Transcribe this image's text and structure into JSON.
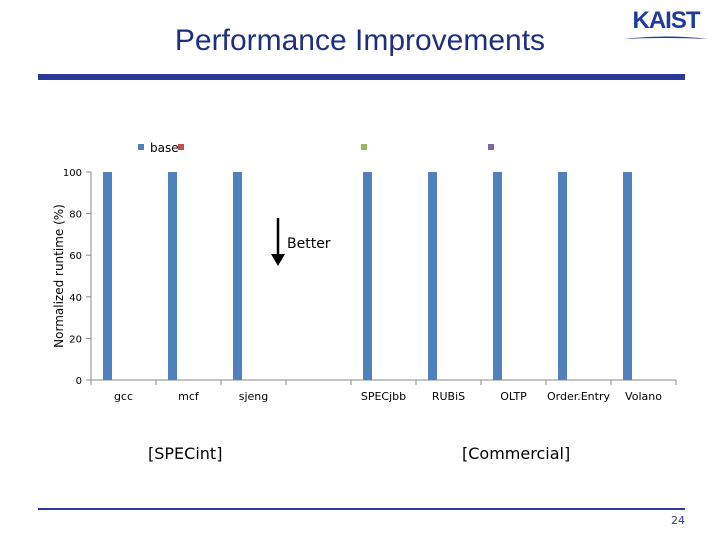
{
  "slide": {
    "title": "Performance Improvements",
    "logo_text": "KAIST",
    "page_number": "24",
    "group_labels": [
      "[SPECint]",
      "[Commercial]"
    ],
    "accent_color": "#2b3a9a"
  },
  "chart_data": {
    "type": "bar",
    "title": "",
    "xlabel": "",
    "ylabel": "Normalized runtime (%)",
    "ylim": [
      0,
      100
    ],
    "yticks": [
      0,
      20,
      40,
      60,
      80,
      100
    ],
    "categories": [
      "gcc",
      "mcf",
      "sjeng",
      "",
      "SPECjbb",
      "RUBiS",
      "OLTP",
      "Order.Entry",
      "Volano"
    ],
    "series": [
      {
        "name": "base",
        "color": "#4f81bd",
        "values": [
          100,
          100,
          100,
          null,
          100,
          100,
          100,
          100,
          100
        ]
      },
      {
        "name": "",
        "color": "#c0504d",
        "values": [
          null,
          null,
          null,
          null,
          null,
          null,
          null,
          null,
          null
        ]
      },
      {
        "name": "",
        "color": "#9bbb59",
        "values": [
          null,
          null,
          null,
          null,
          null,
          null,
          null,
          null,
          null
        ]
      },
      {
        "name": "",
        "color": "#8064a2",
        "values": [
          null,
          null,
          null,
          null,
          null,
          null,
          null,
          null,
          null
        ]
      }
    ],
    "legend_position": "top",
    "annotation": {
      "text": "Better",
      "arrow": "down"
    }
  }
}
